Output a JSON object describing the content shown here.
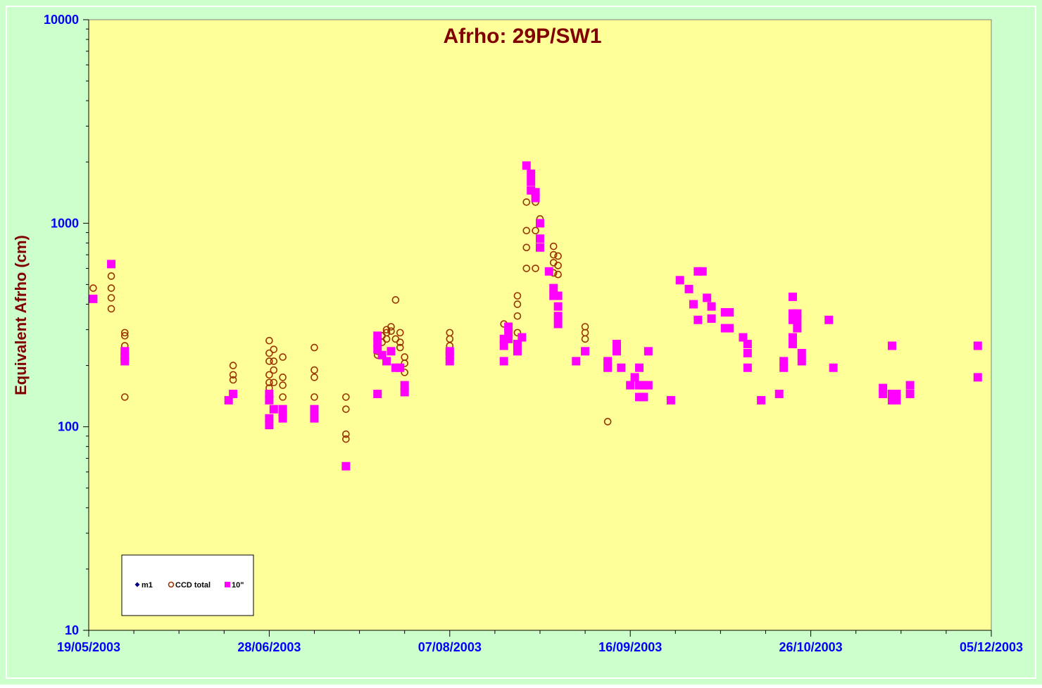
{
  "chart_data": {
    "type": "scatter",
    "title": "Afrho: 29P/SW1",
    "ylabel": "Equivalent Afrho (cm)",
    "xlabel": "",
    "yscale": "log",
    "ylim": [
      10,
      10000
    ],
    "xlim": [
      "2003-05-19",
      "2003-12-05"
    ],
    "x_ticks": [
      "19/05/2003",
      "28/06/2003",
      "07/08/2003",
      "16/09/2003",
      "26/10/2003",
      "05/12/2003"
    ],
    "y_ticks": [
      "10",
      "100",
      "1000",
      "10000"
    ],
    "grid": false,
    "legend_position": "bottom-left",
    "colors": {
      "background": "#ccffcc",
      "plot_background": "#ffff99",
      "title": "#800000",
      "ylabel": "#800000",
      "tick_labels": "#0000ff",
      "ccd_total": "#993300",
      "ten_arcsec": "#ff00ff",
      "m1": "#000080"
    },
    "series": [
      {
        "name": "m1",
        "marker": "diamond",
        "points": []
      },
      {
        "name": "CCD total",
        "marker": "circle",
        "points": [
          [
            "2003-05-20",
            480
          ],
          [
            "2003-05-24",
            550
          ],
          [
            "2003-05-24",
            480
          ],
          [
            "2003-05-24",
            430
          ],
          [
            "2003-05-24",
            380
          ],
          [
            "2003-05-27",
            290
          ],
          [
            "2003-05-27",
            280
          ],
          [
            "2003-05-27",
            250
          ],
          [
            "2003-05-27",
            140
          ],
          [
            "2003-06-20",
            200
          ],
          [
            "2003-06-20",
            180
          ],
          [
            "2003-06-20",
            170
          ],
          [
            "2003-06-28",
            265
          ],
          [
            "2003-06-28",
            230
          ],
          [
            "2003-06-28",
            210
          ],
          [
            "2003-06-28",
            180
          ],
          [
            "2003-06-28",
            165
          ],
          [
            "2003-06-28",
            155
          ],
          [
            "2003-06-29",
            240
          ],
          [
            "2003-06-29",
            210
          ],
          [
            "2003-06-29",
            190
          ],
          [
            "2003-06-29",
            165
          ],
          [
            "2003-07-01",
            220
          ],
          [
            "2003-07-01",
            175
          ],
          [
            "2003-07-01",
            160
          ],
          [
            "2003-07-01",
            140
          ],
          [
            "2003-07-08",
            245
          ],
          [
            "2003-07-08",
            190
          ],
          [
            "2003-07-08",
            175
          ],
          [
            "2003-07-08",
            140
          ],
          [
            "2003-07-15",
            140
          ],
          [
            "2003-07-15",
            122
          ],
          [
            "2003-07-15",
            92
          ],
          [
            "2003-07-15",
            87
          ],
          [
            "2003-07-22",
            235
          ],
          [
            "2003-07-22",
            225
          ],
          [
            "2003-07-23",
            280
          ],
          [
            "2003-07-23",
            260
          ],
          [
            "2003-07-24",
            300
          ],
          [
            "2003-07-24",
            290
          ],
          [
            "2003-07-24",
            270
          ],
          [
            "2003-07-25",
            310
          ],
          [
            "2003-07-25",
            295
          ],
          [
            "2003-07-26",
            420
          ],
          [
            "2003-07-26",
            270
          ],
          [
            "2003-07-27",
            290
          ],
          [
            "2003-07-27",
            260
          ],
          [
            "2003-07-27",
            245
          ],
          [
            "2003-07-28",
            220
          ],
          [
            "2003-07-28",
            205
          ],
          [
            "2003-07-28",
            185
          ],
          [
            "2003-08-07",
            290
          ],
          [
            "2003-08-07",
            270
          ],
          [
            "2003-08-07",
            250
          ],
          [
            "2003-08-19",
            320
          ],
          [
            "2003-08-22",
            440
          ],
          [
            "2003-08-22",
            400
          ],
          [
            "2003-08-22",
            350
          ],
          [
            "2003-08-22",
            290
          ],
          [
            "2003-08-24",
            1270
          ],
          [
            "2003-08-24",
            920
          ],
          [
            "2003-08-24",
            760
          ],
          [
            "2003-08-24",
            600
          ],
          [
            "2003-08-26",
            1270
          ],
          [
            "2003-08-26",
            920
          ],
          [
            "2003-08-26",
            600
          ],
          [
            "2003-08-27",
            1050
          ],
          [
            "2003-08-30",
            770
          ],
          [
            "2003-08-30",
            700
          ],
          [
            "2003-08-30",
            640
          ],
          [
            "2003-08-30",
            570
          ],
          [
            "2003-08-31",
            690
          ],
          [
            "2003-08-31",
            620
          ],
          [
            "2003-08-31",
            560
          ],
          [
            "2003-09-06",
            310
          ],
          [
            "2003-09-06",
            290
          ],
          [
            "2003-09-06",
            270
          ],
          [
            "2003-09-11",
            106
          ]
        ]
      },
      {
        "name": "10\"",
        "marker": "square",
        "points": [
          [
            "2003-05-20",
            425
          ],
          [
            "2003-05-24",
            630
          ],
          [
            "2003-05-27",
            235
          ],
          [
            "2003-05-27",
            220
          ],
          [
            "2003-05-27",
            210
          ],
          [
            "2003-06-19",
            135
          ],
          [
            "2003-06-20",
            145
          ],
          [
            "2003-06-28",
            145
          ],
          [
            "2003-06-28",
            135
          ],
          [
            "2003-06-28",
            110
          ],
          [
            "2003-06-28",
            102
          ],
          [
            "2003-06-29",
            122
          ],
          [
            "2003-07-01",
            122
          ],
          [
            "2003-07-01",
            115
          ],
          [
            "2003-07-01",
            110
          ],
          [
            "2003-07-08",
            122
          ],
          [
            "2003-07-08",
            115
          ],
          [
            "2003-07-08",
            110
          ],
          [
            "2003-07-15",
            64
          ],
          [
            "2003-07-22",
            280
          ],
          [
            "2003-07-22",
            260
          ],
          [
            "2003-07-22",
            240
          ],
          [
            "2003-07-22",
            145
          ],
          [
            "2003-07-23",
            225
          ],
          [
            "2003-07-24",
            210
          ],
          [
            "2003-07-25",
            235
          ],
          [
            "2003-07-26",
            195
          ],
          [
            "2003-07-27",
            195
          ],
          [
            "2003-07-28",
            160
          ],
          [
            "2003-07-28",
            148
          ],
          [
            "2003-08-07",
            235
          ],
          [
            "2003-08-07",
            225
          ],
          [
            "2003-08-07",
            210
          ],
          [
            "2003-08-19",
            270
          ],
          [
            "2003-08-19",
            250
          ],
          [
            "2003-08-19",
            210
          ],
          [
            "2003-08-20",
            310
          ],
          [
            "2003-08-20",
            290
          ],
          [
            "2003-08-20",
            270
          ],
          [
            "2003-08-22",
            255
          ],
          [
            "2003-08-22",
            235
          ],
          [
            "2003-08-23",
            275
          ],
          [
            "2003-08-24",
            1920
          ],
          [
            "2003-08-25",
            1750
          ],
          [
            "2003-08-25",
            1600
          ],
          [
            "2003-08-25",
            1450
          ],
          [
            "2003-08-26",
            1420
          ],
          [
            "2003-08-26",
            1330
          ],
          [
            "2003-08-27",
            1000
          ],
          [
            "2003-08-27",
            840
          ],
          [
            "2003-08-27",
            760
          ],
          [
            "2003-08-29",
            580
          ],
          [
            "2003-08-30",
            480
          ],
          [
            "2003-08-30",
            440
          ],
          [
            "2003-08-31",
            440
          ],
          [
            "2003-08-31",
            390
          ],
          [
            "2003-08-31",
            350
          ],
          [
            "2003-08-31",
            320
          ],
          [
            "2003-09-04",
            210
          ],
          [
            "2003-09-06",
            235
          ],
          [
            "2003-09-11",
            210
          ],
          [
            "2003-09-11",
            195
          ],
          [
            "2003-09-13",
            255
          ],
          [
            "2003-09-13",
            235
          ],
          [
            "2003-09-14",
            195
          ],
          [
            "2003-09-16",
            160
          ],
          [
            "2003-09-17",
            175
          ],
          [
            "2003-09-18",
            195
          ],
          [
            "2003-09-18",
            160
          ],
          [
            "2003-09-18",
            140
          ],
          [
            "2003-09-19",
            160
          ],
          [
            "2003-09-19",
            140
          ],
          [
            "2003-09-20",
            235
          ],
          [
            "2003-09-20",
            160
          ],
          [
            "2003-09-25",
            135
          ],
          [
            "2003-09-27",
            525
          ],
          [
            "2003-09-29",
            475
          ],
          [
            "2003-09-30",
            400
          ],
          [
            "2003-10-01",
            580
          ],
          [
            "2003-10-01",
            335
          ],
          [
            "2003-10-02",
            580
          ],
          [
            "2003-10-03",
            430
          ],
          [
            "2003-10-04",
            390
          ],
          [
            "2003-10-04",
            340
          ],
          [
            "2003-10-07",
            365
          ],
          [
            "2003-10-07",
            305
          ],
          [
            "2003-10-08",
            365
          ],
          [
            "2003-10-08",
            305
          ],
          [
            "2003-10-11",
            275
          ],
          [
            "2003-10-12",
            255
          ],
          [
            "2003-10-12",
            230
          ],
          [
            "2003-10-12",
            195
          ],
          [
            "2003-10-15",
            135
          ],
          [
            "2003-10-19",
            145
          ],
          [
            "2003-10-20",
            210
          ],
          [
            "2003-10-20",
            195
          ],
          [
            "2003-10-22",
            435
          ],
          [
            "2003-10-22",
            360
          ],
          [
            "2003-10-22",
            335
          ],
          [
            "2003-10-22",
            275
          ],
          [
            "2003-10-22",
            255
          ],
          [
            "2003-10-23",
            360
          ],
          [
            "2003-10-23",
            335
          ],
          [
            "2003-10-23",
            305
          ],
          [
            "2003-10-24",
            230
          ],
          [
            "2003-10-24",
            210
          ],
          [
            "2003-10-30",
            335
          ],
          [
            "2003-10-31",
            195
          ],
          [
            "2003-11-11",
            155
          ],
          [
            "2003-11-11",
            145
          ],
          [
            "2003-11-13",
            250
          ],
          [
            "2003-11-13",
            145
          ],
          [
            "2003-11-13",
            135
          ],
          [
            "2003-11-14",
            145
          ],
          [
            "2003-11-14",
            135
          ],
          [
            "2003-11-17",
            160
          ],
          [
            "2003-11-17",
            145
          ],
          [
            "2003-12-02",
            250
          ],
          [
            "2003-12-02",
            175
          ]
        ]
      }
    ]
  }
}
